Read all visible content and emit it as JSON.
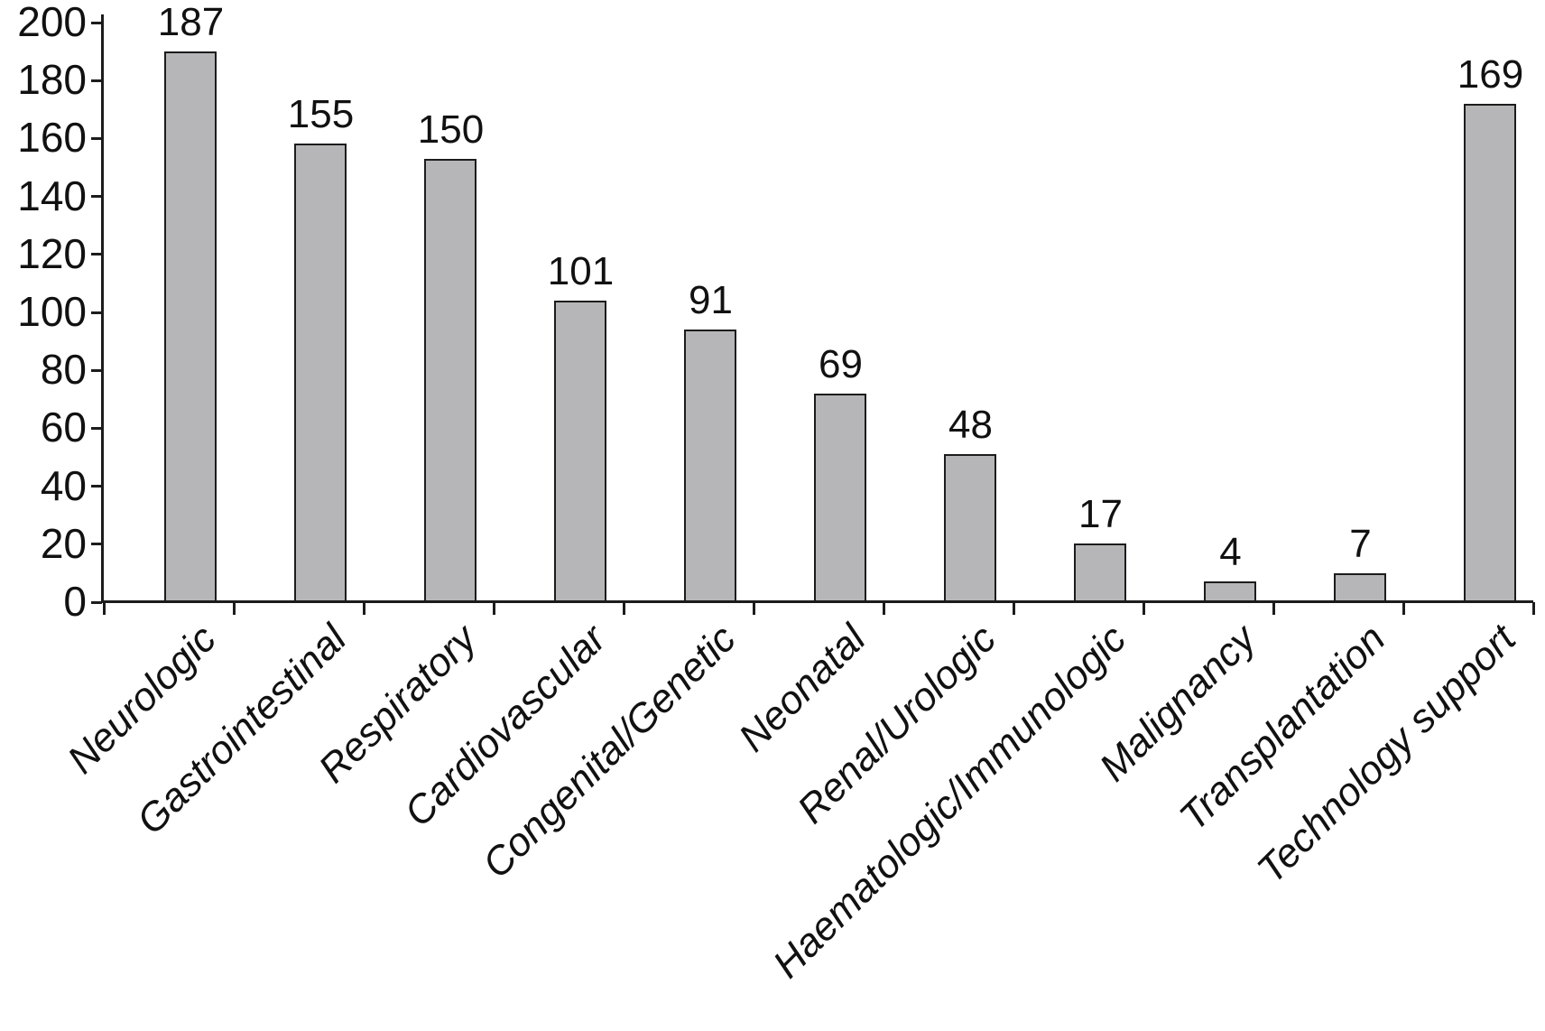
{
  "chart_data": {
    "type": "bar",
    "title": "",
    "xlabel": "",
    "ylabel": "",
    "categories": [
      "Neurologic",
      "Gastrointestinal",
      "Respiratory",
      "Cardiovascular",
      "Congenital/Genetic",
      "Neonatal",
      "Renal/Urologic",
      "Haematologic/Immunologic",
      "Malignancy",
      "Transplantation",
      "Technology support"
    ],
    "values": [
      187,
      155,
      150,
      101,
      91,
      69,
      48,
      17,
      4,
      7,
      169
    ],
    "value_labels_shown": true,
    "ylim": [
      0,
      200
    ],
    "yticks": [
      0,
      20,
      40,
      60,
      80,
      100,
      120,
      140,
      160,
      180,
      200
    ],
    "grid": false,
    "legend": "none",
    "x_label_rotation_deg": 45,
    "x_label_style": "italic",
    "colors": {
      "bar_fill": "#b6b6b8",
      "bar_stroke": "#1c1c1c",
      "axis": "#1c1c1c",
      "text": "#111111",
      "background": "#ffffff"
    }
  }
}
